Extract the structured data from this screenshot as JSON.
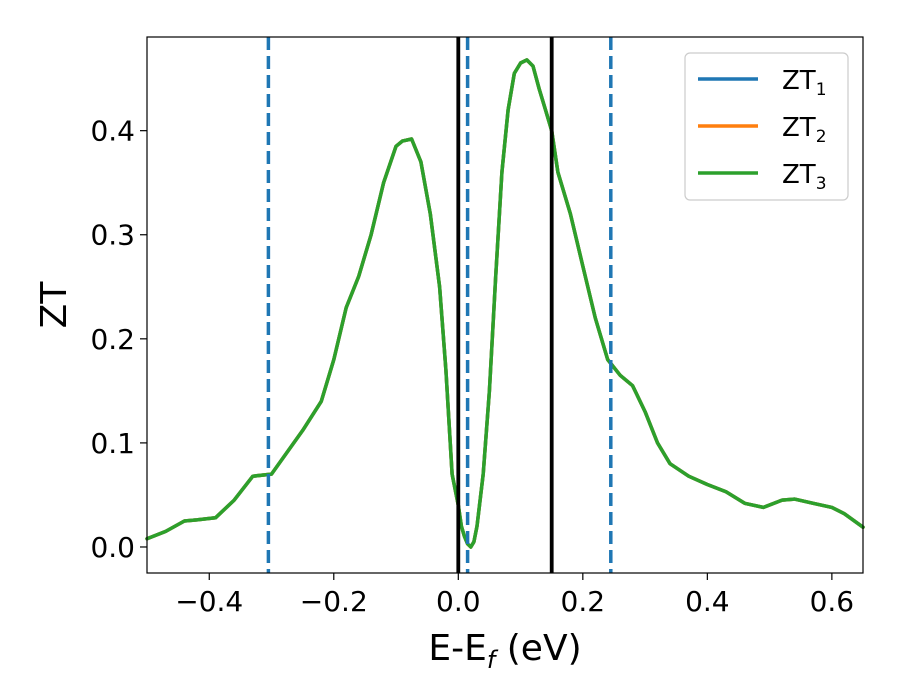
{
  "chart_data": {
    "type": "line",
    "xlabel": "E-E",
    "xlabel_sub": "f",
    "xlabel_suffix": " (eV)",
    "ylabel": "ZT",
    "xlim": [
      -0.5,
      0.65
    ],
    "ylim": [
      -0.025,
      0.49
    ],
    "xticks": [
      -0.4,
      -0.2,
      0.0,
      0.2,
      0.4,
      0.6
    ],
    "xtick_labels": [
      "−0.4",
      "−0.2",
      "0.0",
      "0.2",
      "0.4",
      "0.6"
    ],
    "yticks": [
      0.0,
      0.1,
      0.2,
      0.3,
      0.4
    ],
    "ytick_labels": [
      "0.0",
      "0.1",
      "0.2",
      "0.3",
      "0.4"
    ],
    "grid": false,
    "legend_position": "top-right",
    "series": [
      {
        "name": "ZT",
        "name_sub": "1",
        "color": "#1f77b4",
        "x": [
          -0.5,
          -0.47,
          -0.44,
          -0.42,
          -0.39,
          -0.36,
          -0.33,
          -0.3,
          -0.25,
          -0.22,
          -0.2,
          -0.18,
          -0.16,
          -0.14,
          -0.12,
          -0.1,
          -0.09,
          -0.075,
          -0.06,
          -0.045,
          -0.03,
          -0.02,
          -0.01,
          0.0,
          0.005,
          0.01,
          0.015,
          0.02,
          0.025,
          0.03,
          0.04,
          0.05,
          0.06,
          0.07,
          0.08,
          0.09,
          0.1,
          0.11,
          0.12,
          0.13,
          0.14,
          0.15,
          0.16,
          0.18,
          0.2,
          0.22,
          0.24,
          0.26,
          0.28,
          0.3,
          0.32,
          0.34,
          0.37,
          0.4,
          0.43,
          0.46,
          0.49,
          0.52,
          0.54,
          0.57,
          0.6,
          0.62,
          0.65
        ],
        "y": [
          0.008,
          0.015,
          0.025,
          0.026,
          0.028,
          0.045,
          0.068,
          0.07,
          0.112,
          0.14,
          0.18,
          0.23,
          0.26,
          0.3,
          0.35,
          0.385,
          0.39,
          0.392,
          0.37,
          0.32,
          0.25,
          0.17,
          0.07,
          0.04,
          0.02,
          0.01,
          0.003,
          0.0,
          0.005,
          0.02,
          0.07,
          0.15,
          0.26,
          0.36,
          0.42,
          0.455,
          0.465,
          0.468,
          0.462,
          0.44,
          0.42,
          0.4,
          0.36,
          0.32,
          0.27,
          0.22,
          0.18,
          0.165,
          0.155,
          0.13,
          0.1,
          0.08,
          0.068,
          0.06,
          0.053,
          0.042,
          0.038,
          0.045,
          0.046,
          0.042,
          0.038,
          0.032,
          0.019
        ]
      },
      {
        "name": "ZT",
        "name_sub": "2",
        "color": "#ff7f0e",
        "x": [
          -0.5,
          -0.47,
          -0.44,
          -0.42,
          -0.39,
          -0.36,
          -0.33,
          -0.3,
          -0.25,
          -0.22,
          -0.2,
          -0.18,
          -0.16,
          -0.14,
          -0.12,
          -0.1,
          -0.09,
          -0.075,
          -0.06,
          -0.045,
          -0.03,
          -0.02,
          -0.01,
          0.0,
          0.005,
          0.01,
          0.015,
          0.02,
          0.025,
          0.03,
          0.04,
          0.05,
          0.06,
          0.07,
          0.08,
          0.09,
          0.1,
          0.11,
          0.12,
          0.13,
          0.14,
          0.15,
          0.16,
          0.18,
          0.2,
          0.22,
          0.24,
          0.26,
          0.28,
          0.3,
          0.32,
          0.34,
          0.37,
          0.4,
          0.43,
          0.46,
          0.49,
          0.52,
          0.54,
          0.57,
          0.6,
          0.62,
          0.65
        ],
        "y": [
          0.008,
          0.015,
          0.025,
          0.026,
          0.028,
          0.045,
          0.068,
          0.07,
          0.112,
          0.14,
          0.18,
          0.23,
          0.26,
          0.3,
          0.35,
          0.385,
          0.39,
          0.392,
          0.37,
          0.32,
          0.25,
          0.17,
          0.07,
          0.04,
          0.02,
          0.01,
          0.003,
          0.0,
          0.005,
          0.02,
          0.07,
          0.15,
          0.26,
          0.36,
          0.42,
          0.455,
          0.465,
          0.468,
          0.462,
          0.44,
          0.42,
          0.4,
          0.36,
          0.32,
          0.27,
          0.22,
          0.18,
          0.165,
          0.155,
          0.13,
          0.1,
          0.08,
          0.068,
          0.06,
          0.053,
          0.042,
          0.038,
          0.045,
          0.046,
          0.042,
          0.038,
          0.032,
          0.019
        ]
      },
      {
        "name": "ZT",
        "name_sub": "3",
        "color": "#2ca02c",
        "x": [
          -0.5,
          -0.47,
          -0.44,
          -0.42,
          -0.39,
          -0.36,
          -0.33,
          -0.3,
          -0.25,
          -0.22,
          -0.2,
          -0.18,
          -0.16,
          -0.14,
          -0.12,
          -0.1,
          -0.09,
          -0.075,
          -0.06,
          -0.045,
          -0.03,
          -0.02,
          -0.01,
          0.0,
          0.005,
          0.01,
          0.015,
          0.02,
          0.025,
          0.03,
          0.04,
          0.05,
          0.06,
          0.07,
          0.08,
          0.09,
          0.1,
          0.11,
          0.12,
          0.13,
          0.14,
          0.15,
          0.16,
          0.18,
          0.2,
          0.22,
          0.24,
          0.26,
          0.28,
          0.3,
          0.32,
          0.34,
          0.37,
          0.4,
          0.43,
          0.46,
          0.49,
          0.52,
          0.54,
          0.57,
          0.6,
          0.62,
          0.65
        ],
        "y": [
          0.008,
          0.015,
          0.025,
          0.026,
          0.028,
          0.045,
          0.068,
          0.07,
          0.112,
          0.14,
          0.18,
          0.23,
          0.26,
          0.3,
          0.35,
          0.385,
          0.39,
          0.392,
          0.37,
          0.32,
          0.25,
          0.17,
          0.07,
          0.04,
          0.02,
          0.01,
          0.003,
          0.0,
          0.005,
          0.02,
          0.07,
          0.15,
          0.26,
          0.36,
          0.42,
          0.455,
          0.465,
          0.468,
          0.462,
          0.44,
          0.42,
          0.4,
          0.36,
          0.32,
          0.27,
          0.22,
          0.18,
          0.165,
          0.155,
          0.13,
          0.1,
          0.08,
          0.068,
          0.06,
          0.053,
          0.042,
          0.038,
          0.045,
          0.046,
          0.042,
          0.038,
          0.032,
          0.019
        ]
      }
    ],
    "vlines": [
      {
        "x": -0.305,
        "style": "dashed",
        "color": "#1f77b4"
      },
      {
        "x": 0.015,
        "style": "dashed",
        "color": "#1f77b4"
      },
      {
        "x": 0.245,
        "style": "dashed",
        "color": "#1f77b4"
      },
      {
        "x": 0.0,
        "style": "solid",
        "color": "#000000"
      },
      {
        "x": 0.15,
        "style": "solid",
        "color": "#000000"
      }
    ]
  }
}
